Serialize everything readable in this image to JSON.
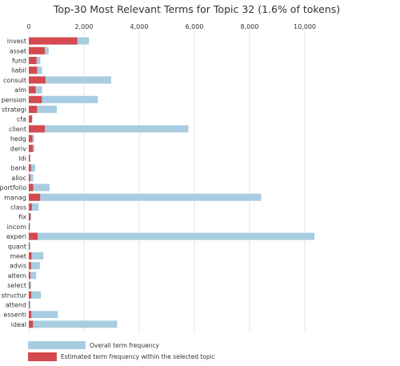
{
  "chart_data": {
    "type": "bar",
    "title": "Top-30 Most Relevant Terms for Topic 32 (1.6% of tokens)",
    "xlim": [
      0,
      10000
    ],
    "x_ticks": [
      0,
      2000,
      4000,
      6000,
      8000,
      10000
    ],
    "x_tick_labels": [
      "0",
      "2,000",
      "4,000",
      "6,000",
      "8,000",
      "10,000"
    ],
    "orientation": "horizontal",
    "categories": [
      "invest",
      "asset",
      "fund",
      "liabil",
      "consult",
      "alm",
      "pension",
      "strategi",
      "cfa",
      "client",
      "hedg",
      "deriv",
      "ldi",
      "bank",
      "alloc",
      "portfolio",
      "manag",
      "class",
      "fix",
      "incom",
      "experi",
      "quant",
      "meet",
      "advis",
      "altern",
      "select",
      "structur",
      "attend",
      "essenti",
      "ideal"
    ],
    "series": [
      {
        "name": "Overall term frequency",
        "color": "#a8cce0",
        "values": [
          2180,
          720,
          420,
          480,
          2980,
          480,
          2500,
          1020,
          120,
          5780,
          190,
          200,
          60,
          230,
          160,
          750,
          8420,
          360,
          90,
          50,
          10350,
          50,
          530,
          400,
          270,
          90,
          440,
          60,
          1050,
          3200
        ]
      },
      {
        "name": "Estimated term frequency within the selected topic",
        "color": "#d54a4f",
        "values": [
          1760,
          580,
          280,
          300,
          600,
          250,
          470,
          300,
          120,
          580,
          130,
          150,
          40,
          80,
          50,
          160,
          410,
          110,
          60,
          30,
          320,
          30,
          100,
          80,
          60,
          40,
          90,
          30,
          90,
          150
        ]
      }
    ],
    "grid": true,
    "legend_position": "bottom-left"
  }
}
